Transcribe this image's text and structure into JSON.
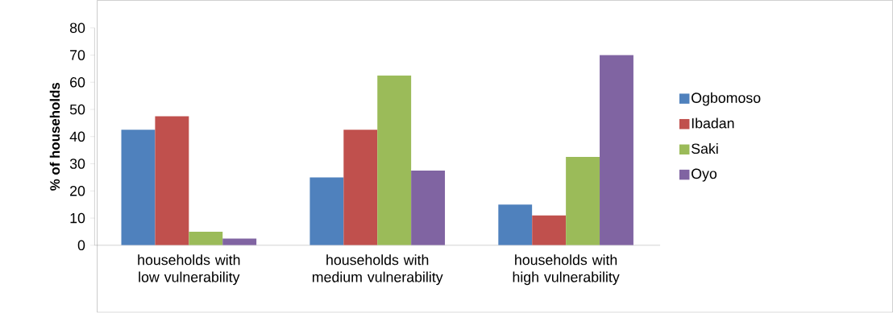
{
  "chart_data": {
    "type": "bar",
    "ylabel": "% of households",
    "categories": [
      "households with low vulnerability",
      "households with medium vulnerability",
      "households with high vulnerability"
    ],
    "series": [
      {
        "name": "Ogbomoso",
        "color": "#4f81bd",
        "values": [
          42.5,
          25,
          15
        ]
      },
      {
        "name": "Ibadan",
        "color": "#c0504d",
        "values": [
          47.5,
          42.5,
          11
        ]
      },
      {
        "name": "Saki",
        "color": "#9bbb59",
        "values": [
          5,
          62.5,
          32.5
        ]
      },
      {
        "name": "Oyo",
        "color": "#8064a2",
        "values": [
          2.5,
          27.5,
          70
        ]
      }
    ],
    "ylim": [
      0,
      80
    ],
    "yticks": [
      0,
      10,
      20,
      30,
      40,
      50,
      60,
      70,
      80
    ],
    "legend": "right"
  }
}
